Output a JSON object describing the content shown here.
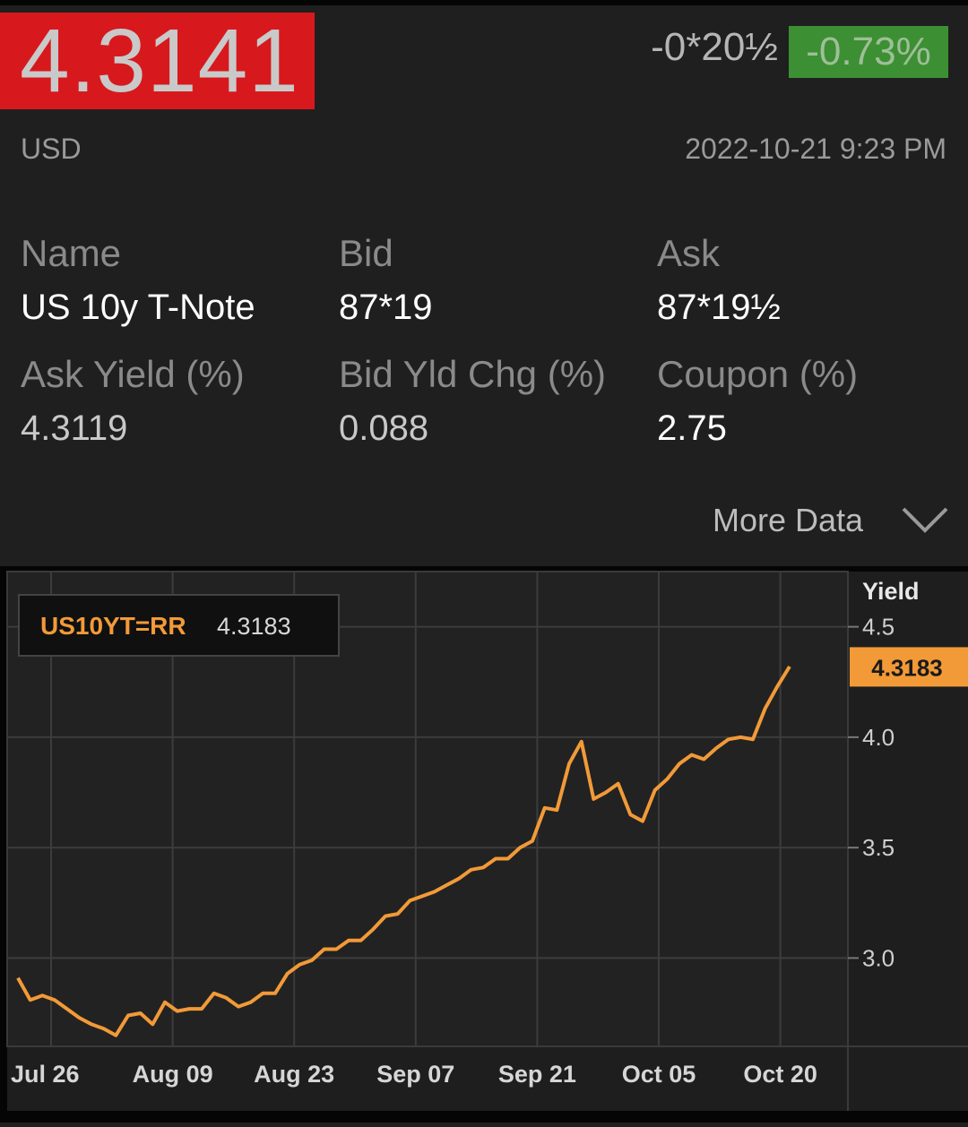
{
  "quote": {
    "last": "4.3141",
    "change_abs": "-0*20½",
    "change_pct": "-0.73%",
    "currency": "USD",
    "timestamp": "2022-10-21 9:23 PM",
    "colors": {
      "down_box": "#d7191d",
      "pct_box": "#3d8f33",
      "line": "#f29a38"
    }
  },
  "fields": [
    {
      "label": "Name",
      "value": "US 10y T-Note"
    },
    {
      "label": "Bid",
      "value": "87*19"
    },
    {
      "label": "Ask",
      "value": "87*19½"
    },
    {
      "label": "Ask Yield (%)",
      "value": "4.3119"
    },
    {
      "label": "Bid Yld Chg (%)",
      "value": "0.088"
    },
    {
      "label": "Coupon (%)",
      "value": "2.75"
    }
  ],
  "more_data_label": "More Data",
  "chart_data": {
    "type": "line",
    "ric_label": "US10YT=RR",
    "ric_value": "4.3183",
    "ylabel": "Yield",
    "ylim": [
      2.6,
      4.75
    ],
    "yticks": [
      "4.5",
      "4.0",
      "3.5",
      "3.0"
    ],
    "ytick_values": [
      4.5,
      4.0,
      3.5,
      3.0
    ],
    "last_value_label": "4.3183",
    "xtick_labels": [
      "Jul 26",
      "Aug 09",
      "Aug 23",
      "Sep 07",
      "Sep 21",
      "Oct 05",
      "Oct 20"
    ],
    "series": [
      {
        "values": [
          2.91,
          2.81,
          2.83,
          2.81,
          2.77,
          2.73,
          2.7,
          2.68,
          2.65,
          2.74,
          2.75,
          2.7,
          2.8,
          2.76,
          2.77,
          2.77,
          2.84,
          2.82,
          2.78,
          2.8,
          2.84,
          2.84,
          2.93,
          2.97,
          2.99,
          3.04,
          3.04,
          3.08,
          3.08,
          3.13,
          3.19,
          3.2,
          3.26,
          3.28,
          3.3,
          3.33,
          3.36,
          3.4,
          3.41,
          3.45,
          3.45,
          3.5,
          3.53,
          3.68,
          3.67,
          3.88,
          3.98,
          3.72,
          3.75,
          3.79,
          3.65,
          3.62,
          3.76,
          3.81,
          3.88,
          3.92,
          3.9,
          3.95,
          3.99,
          4.0,
          3.99,
          4.13,
          4.23,
          4.32
        ]
      }
    ]
  }
}
